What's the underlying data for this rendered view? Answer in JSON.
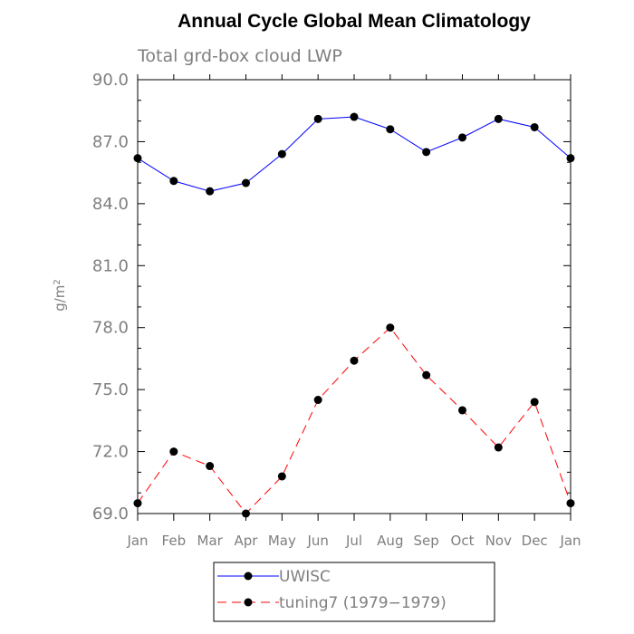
{
  "chart_data": {
    "type": "line",
    "title": "Annual Cycle Global Mean Climatology",
    "subtitle": "Total grd-box cloud LWP",
    "ylabel": "g/m",
    "ylabel_sup": "2",
    "xlabel": "",
    "categories": [
      "Jan",
      "Feb",
      "Mar",
      "Apr",
      "May",
      "Jun",
      "Jul",
      "Aug",
      "Sep",
      "Oct",
      "Nov",
      "Dec",
      "Jan"
    ],
    "ylim": [
      69.0,
      90.0
    ],
    "yticks": [
      "69.0",
      "72.0",
      "75.0",
      "78.0",
      "81.0",
      "84.0",
      "87.0",
      "90.0"
    ],
    "grid": false,
    "legend_position": "bottom",
    "series": [
      {
        "name": "UWISC",
        "color": "#0000ff",
        "dash": "solid",
        "marker": "filled-circle",
        "values": [
          86.2,
          85.1,
          84.6,
          85.0,
          86.4,
          88.1,
          88.2,
          87.6,
          86.5,
          87.2,
          88.1,
          87.7,
          86.2
        ]
      },
      {
        "name": "tuning7 (1979−1979)",
        "color": "#ff0000",
        "dash": "dashed",
        "marker": "filled-circle",
        "values": [
          69.5,
          72.0,
          71.3,
          69.0,
          70.8,
          74.5,
          76.4,
          78.0,
          75.7,
          74.0,
          72.2,
          74.4,
          69.5
        ]
      }
    ]
  }
}
